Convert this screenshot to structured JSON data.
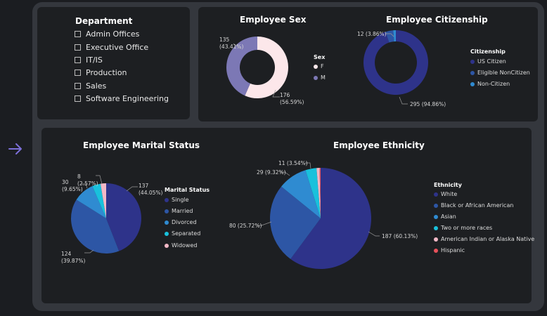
{
  "department": {
    "title": "Department",
    "items": [
      "Admin Offices",
      "Executive Office",
      "IT/IS",
      "Production",
      "Sales",
      "Software Engineering"
    ]
  },
  "colors": {
    "background": "#1b1d21",
    "panel": "#1d1f22",
    "frame": "#34373d",
    "arrow": "#7c6fd8",
    "F": "#fce7ea",
    "M": "#7c78b5",
    "us_citizen": "#2e338a",
    "eligible_noncitizen": "#2d56a5",
    "non_citizen": "#2f8bd1",
    "single": "#2e338a",
    "married": "#2d56a5",
    "divorced": "#2f8bd1",
    "separated": "#19c1dc",
    "widowed": "#f2b8c6",
    "white": "#2e338a",
    "black": "#2d56a5",
    "asian": "#2f8bd1",
    "two_or_more": "#19c1dc",
    "american_indian": "#f2b8c6",
    "hispanic": "#e8515b"
  },
  "chart_data": [
    {
      "type": "pie",
      "variant": "donut",
      "title": "Employee Sex",
      "legend_title": "Sex",
      "categories": [
        "F",
        "M"
      ],
      "values": [
        176,
        135
      ],
      "labels": [
        "176\n(56.59%)",
        "135\n(43.41%)"
      ],
      "colors": [
        "#fce7ea",
        "#7c78b5"
      ]
    },
    {
      "type": "pie",
      "variant": "donut",
      "title": "Employee Citizenship",
      "legend_title": "Citizenship",
      "categories": [
        "US Citizen",
        "Eligible NonCitizen",
        "Non-Citizen"
      ],
      "values": [
        295,
        12,
        4
      ],
      "labels": [
        "295 (94.86%)",
        "12 (3.86%)",
        ""
      ],
      "colors": [
        "#2e338a",
        "#2d56a5",
        "#2f8bd1"
      ]
    },
    {
      "type": "pie",
      "title": "Employee Marital Status",
      "legend_title": "Marital Status",
      "categories": [
        "Single",
        "Married",
        "Divorced",
        "Separated",
        "Widowed"
      ],
      "values": [
        137,
        124,
        30,
        12,
        8
      ],
      "labels": [
        "137\n(44.05%)",
        "124\n(39.87%)",
        "30\n(9.65%)",
        "",
        "8\n(2.57%)"
      ],
      "colors": [
        "#2e338a",
        "#2d56a5",
        "#2f8bd1",
        "#19c1dc",
        "#f2b8c6"
      ]
    },
    {
      "type": "pie",
      "title": "Employee Ethnicity",
      "legend_title": "Ethnicity",
      "categories": [
        "White",
        "Black or African American",
        "Asian",
        "Two or more races",
        "American Indian or Alaska Native",
        "Hispanic"
      ],
      "values": [
        187,
        80,
        29,
        11,
        3,
        1
      ],
      "labels": [
        "187 (60.13%)",
        "80 (25.72%)",
        "29 (9.32%)",
        "11 (3.54%)",
        "",
        ""
      ],
      "colors": [
        "#2e338a",
        "#2d56a5",
        "#2f8bd1",
        "#19c1dc",
        "#f2b8c6",
        "#e8515b"
      ]
    }
  ]
}
